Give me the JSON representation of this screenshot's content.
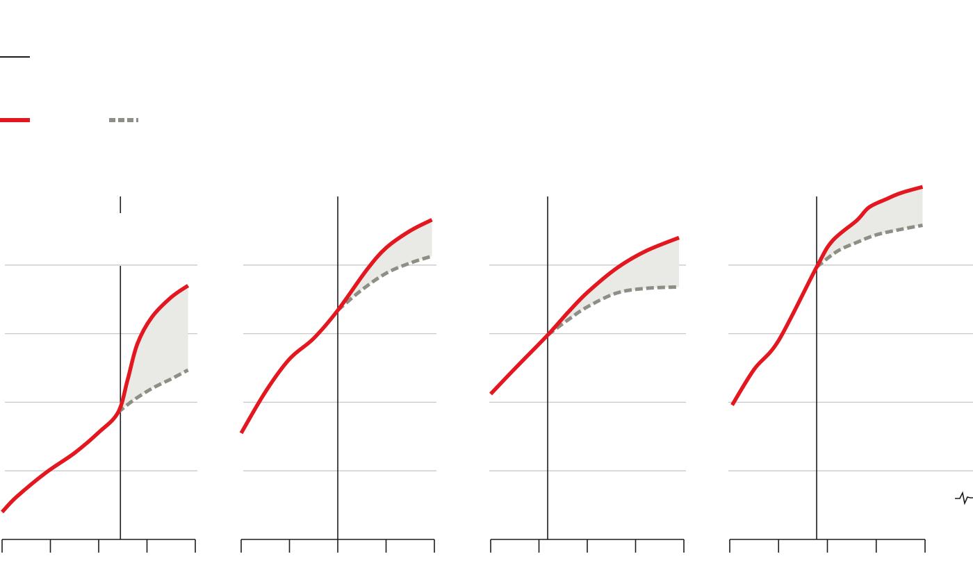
{
  "colors": {
    "actual": "#e3171f",
    "counterfactual": "#8e8e84",
    "gap_fill": "#e9e9e6",
    "gridline": "#c8c8c8",
    "axis": "#1a1a1a",
    "background": "#ffffff"
  },
  "legend": {
    "marker_icon": "thin-black-line",
    "actual_icon": "solid-red-line",
    "counterfactual_icon": "dashed-grey-line"
  },
  "chart_data": [
    {
      "type": "line",
      "panel": 1,
      "x_ticks": [
        0,
        1,
        2,
        3,
        4
      ],
      "xlim": [
        0,
        4
      ],
      "ylim": [
        0,
        5
      ],
      "gridlines_y": [
        1,
        2,
        3,
        4
      ],
      "grid": true,
      "event_x": 2.45,
      "shaded_gap": true,
      "series": [
        {
          "role": "actual",
          "style": "solid",
          "x": [
            0,
            0.3,
            0.9,
            1.5,
            2.0,
            2.4,
            2.6,
            2.8,
            3.1,
            3.5,
            3.85
          ],
          "y": [
            0.4,
            0.62,
            0.97,
            1.26,
            1.56,
            1.85,
            2.33,
            2.85,
            3.24,
            3.53,
            3.7
          ]
        },
        {
          "role": "counterfactual",
          "style": "dashed",
          "x": [
            2.4,
            2.7,
            3.1,
            3.5,
            3.85
          ],
          "y": [
            1.85,
            2.02,
            2.2,
            2.34,
            2.47
          ]
        }
      ]
    },
    {
      "type": "line",
      "panel": 2,
      "x_ticks": [
        0,
        1,
        2,
        3,
        4
      ],
      "xlim": [
        0,
        4
      ],
      "ylim": [
        0,
        5
      ],
      "gridlines_y": [
        1,
        2,
        3,
        4
      ],
      "grid": true,
      "event_x": 2.0,
      "shaded_gap": true,
      "series": [
        {
          "role": "actual",
          "style": "solid",
          "x": [
            0,
            0.5,
            1.0,
            1.5,
            2.0,
            2.6,
            3.0,
            3.5,
            3.95
          ],
          "y": [
            1.55,
            2.15,
            2.63,
            2.93,
            3.34,
            3.93,
            4.25,
            4.5,
            4.66
          ]
        },
        {
          "role": "counterfactual",
          "style": "dashed",
          "x": [
            2.0,
            2.5,
            3.0,
            3.5,
            3.95
          ],
          "y": [
            3.34,
            3.64,
            3.88,
            4.03,
            4.13
          ]
        }
      ]
    },
    {
      "type": "line",
      "panel": 3,
      "x_ticks": [
        0,
        1,
        2,
        3,
        4
      ],
      "xlim": [
        0,
        4
      ],
      "ylim": [
        0,
        5
      ],
      "gridlines_y": [
        1,
        2,
        3,
        4
      ],
      "grid": true,
      "event_x": 1.18,
      "shaded_gap": true,
      "series": [
        {
          "role": "actual",
          "style": "solid",
          "x": [
            0,
            0.5,
            1.18,
            1.6,
            2.0,
            2.6,
            3.2,
            3.9
          ],
          "y": [
            2.12,
            2.49,
            2.98,
            3.31,
            3.6,
            3.95,
            4.2,
            4.4
          ]
        },
        {
          "role": "counterfactual",
          "style": "dashed",
          "x": [
            1.18,
            1.6,
            2.0,
            2.6,
            3.2,
            3.9
          ],
          "y": [
            2.98,
            3.2,
            3.39,
            3.59,
            3.66,
            3.68
          ]
        }
      ]
    },
    {
      "type": "line",
      "panel": 4,
      "x_ticks": [
        0,
        1,
        2,
        3,
        4
      ],
      "xlim": [
        0,
        4
      ],
      "ylim": [
        0,
        5
      ],
      "gridlines_y": [
        1,
        2,
        3,
        4
      ],
      "grid": true,
      "event_x": 1.78,
      "shaded_gap": true,
      "series": [
        {
          "role": "actual",
          "style": "solid",
          "x": [
            0.05,
            0.5,
            1.0,
            1.78,
            2.1,
            2.6,
            2.85,
            3.2,
            3.5,
            3.95
          ],
          "y": [
            1.96,
            2.48,
            2.9,
            3.97,
            4.35,
            4.65,
            4.84,
            4.96,
            5.05,
            5.14
          ]
        },
        {
          "role": "counterfactual",
          "style": "dashed",
          "x": [
            1.78,
            2.2,
            2.6,
            3.0,
            3.5,
            3.95
          ],
          "y": [
            3.97,
            4.2,
            4.33,
            4.44,
            4.52,
            4.58
          ]
        }
      ]
    }
  ]
}
